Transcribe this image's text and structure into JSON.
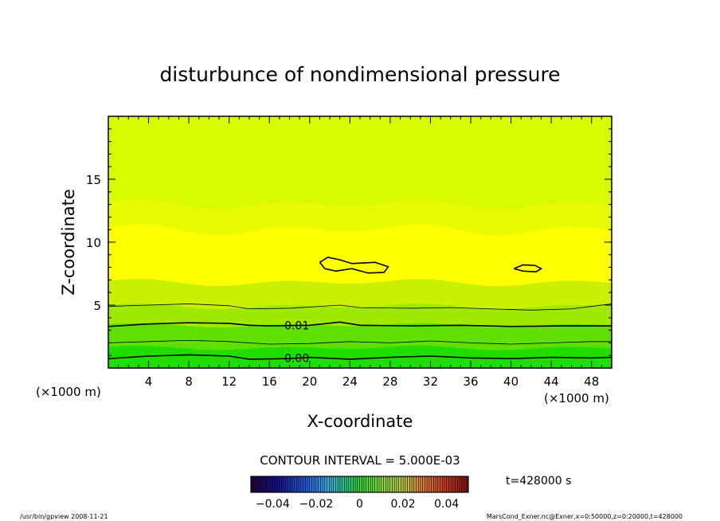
{
  "chart_data": {
    "type": "heatmap",
    "title": "disturbunce of nondimensional pressure",
    "xlabel": "X-coordinate",
    "ylabel": "Z-coordinate",
    "x_unit": "(×1000 m)",
    "y_unit": "(×1000 m)",
    "xlim": [
      0,
      50
    ],
    "ylim": [
      0,
      20
    ],
    "x_ticks": [
      4,
      8,
      12,
      16,
      20,
      24,
      28,
      32,
      36,
      40,
      44,
      48
    ],
    "y_ticks": [
      5,
      10,
      15
    ],
    "contour_interval_text": "CONTOUR INTERVAL = 5.000E-03",
    "contour_labels": [
      {
        "text": "0.01",
        "x": 17.3,
        "z": 3.4
      },
      {
        "text": "0.00",
        "x": 17.3,
        "z": 0.8
      }
    ],
    "colorbar": {
      "min": -0.05,
      "max": 0.05,
      "tick_labels": [
        "-0.04",
        "-0.02",
        "0",
        "0.02",
        "0.04"
      ],
      "tick_values": [
        -0.04,
        -0.02,
        0,
        0.02,
        0.04
      ]
    },
    "time_text": "t=428000 s",
    "footer_left": "/usr/bin/gpview   2008-11-21",
    "footer_right": "MarsCond_Exner.nc@Exner,x=0:50000,z=0:20000,t=428000",
    "colors": {
      "band_top": "#d8fb00",
      "band_upper": "#e8fb00",
      "band_core": "#ffff00",
      "band_mid": "#c8f000",
      "band_low": "#9fe800",
      "band_lower": "#60e000",
      "band_bottom": "#20dd00"
    }
  }
}
